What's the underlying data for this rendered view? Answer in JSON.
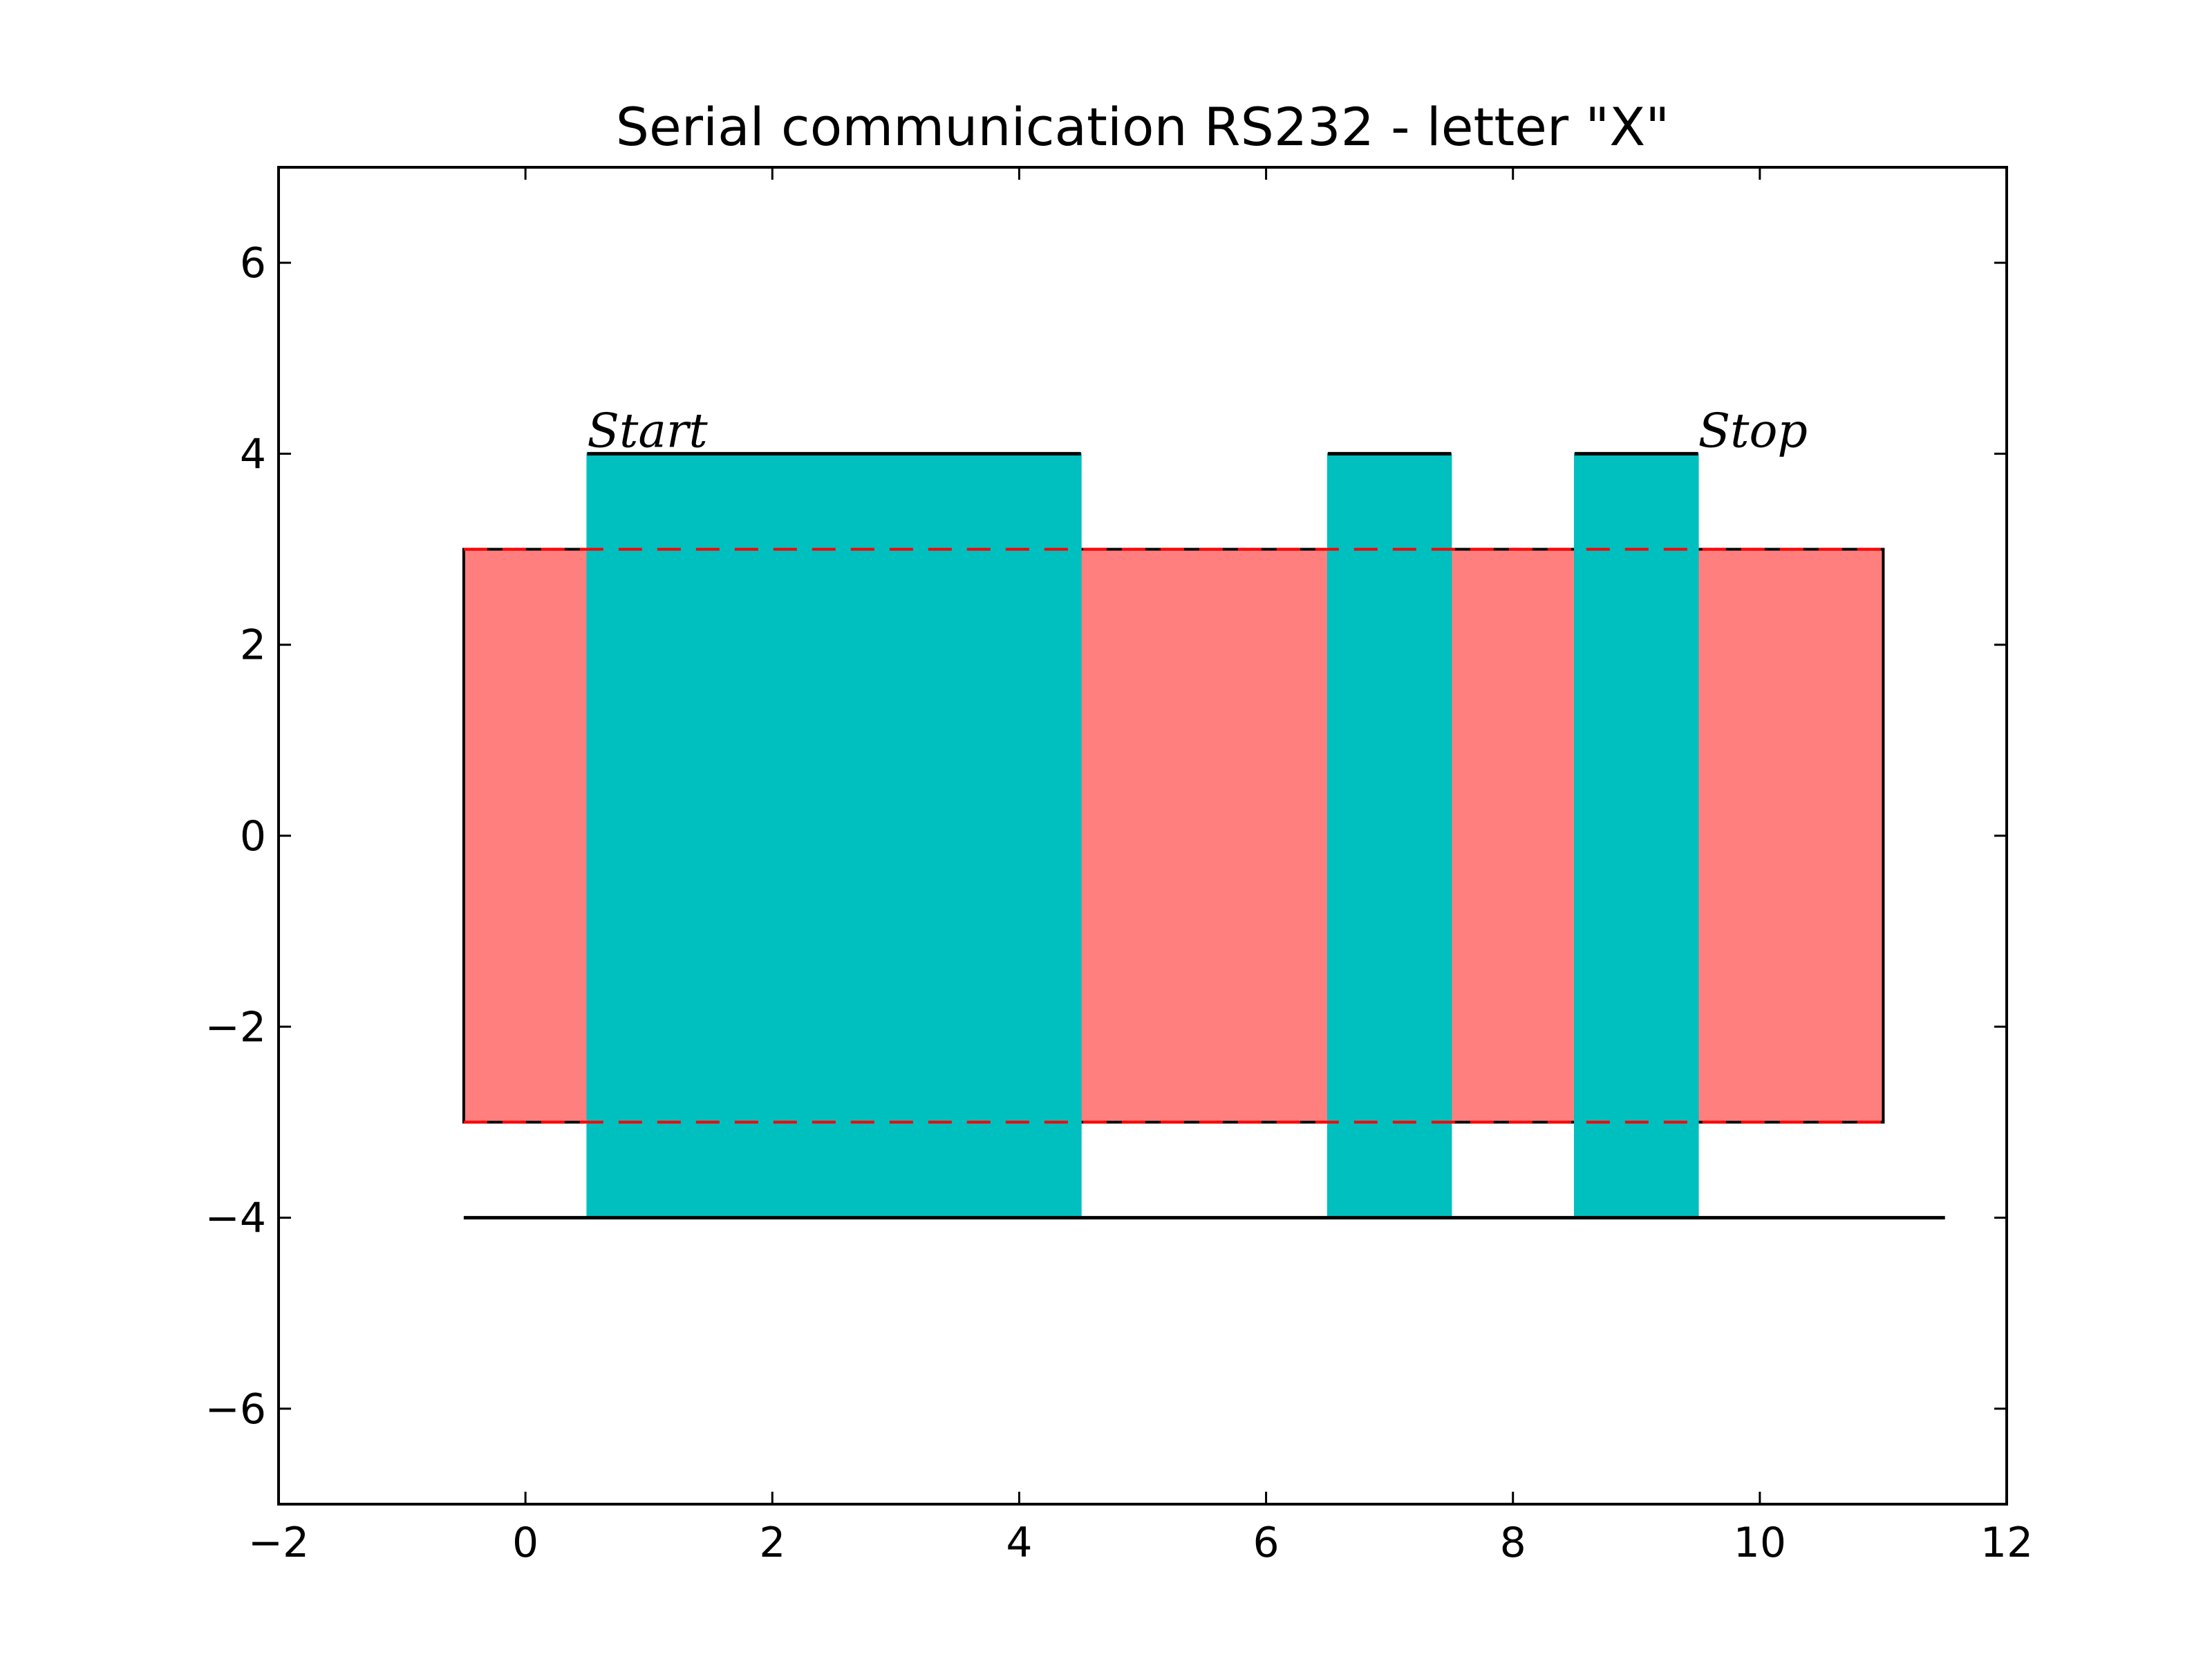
{
  "chart_data": {
    "type": "area",
    "title": "Serial communication RS232 - letter \"X\"",
    "xlabel": "",
    "ylabel": "",
    "xlim": [
      -2,
      12
    ],
    "ylim": [
      -7,
      7
    ],
    "xticks": [
      -2,
      0,
      2,
      4,
      6,
      8,
      10,
      12
    ],
    "yticks": [
      -6,
      -4,
      -2,
      0,
      2,
      4,
      6
    ],
    "xtick_labels": [
      "−2",
      "0",
      "2",
      "4",
      "6",
      "8",
      "10",
      "12"
    ],
    "ytick_labels": [
      "−6",
      "−4",
      "−2",
      "0",
      "2",
      "4",
      "6"
    ],
    "grid": false,
    "colors": {
      "frame_fill": "#ff7f7f",
      "bits_fill": "#00bfbf",
      "line": "#000000",
      "dashes": "#ff0000"
    },
    "frame": {
      "x": [
        -0.5,
        11
      ],
      "y": [
        -3,
        3
      ]
    },
    "bits": [
      {
        "x": [
          0.5,
          4.5
        ],
        "y": [
          -4,
          4
        ]
      },
      {
        "x": [
          6.5,
          7.5
        ],
        "y": [
          -4,
          4
        ]
      },
      {
        "x": [
          8.5,
          9.5
        ],
        "y": [
          -4,
          4
        ]
      }
    ],
    "baseline": {
      "x": [
        -0.5,
        11.5
      ],
      "y": -4
    },
    "dashed_levels": [
      3,
      -3
    ],
    "annotations": [
      {
        "text": "Start",
        "x": 0.5,
        "y": 4
      },
      {
        "text": "Stop",
        "x": 9.5,
        "y": 4
      }
    ]
  }
}
